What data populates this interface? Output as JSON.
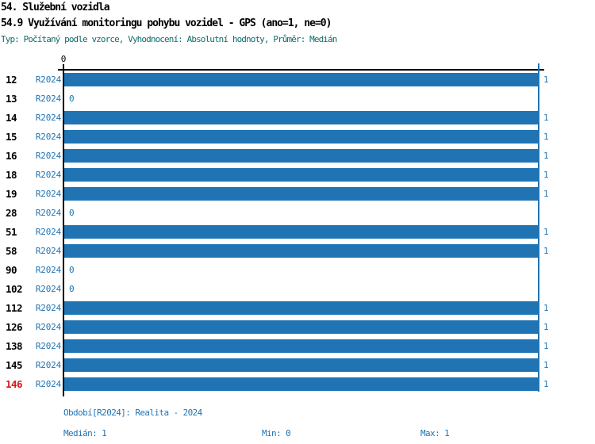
{
  "header": {
    "chapter_title": "54. Služební vozidla",
    "indicator_title": "54.9 Využívání monitoringu pohybu vozidel - GPS (ano=1, ne=0)",
    "meta": "Typ: Počítaný podle vzorce, Vyhodnocení: Absolutní hodnoty, Průměr: Medián"
  },
  "chart_data": {
    "type": "bar",
    "orientation": "horizontal",
    "title": "54.9 Využívání monitoringu pohybu vozidel - GPS (ano=1, ne=0)",
    "categories": [
      "12",
      "13",
      "14",
      "15",
      "16",
      "18",
      "19",
      "28",
      "51",
      "58",
      "90",
      "102",
      "112",
      "126",
      "138",
      "145",
      "146"
    ],
    "series": [
      {
        "name": "R2024",
        "values": [
          1,
          0,
          1,
          1,
          1,
          1,
          1,
          0,
          1,
          1,
          0,
          0,
          1,
          1,
          1,
          1,
          1
        ]
      }
    ],
    "xlim": [
      0,
      1
    ],
    "x_tick_labels": [
      "0"
    ],
    "value_labels_shown": true,
    "max_reference_line": 1,
    "highlighted_category": "146",
    "legend_position": "none",
    "grid": "off"
  },
  "footer": {
    "period_label": "Období[R2024]: Realita - 2024",
    "median_label": "Medián: 1",
    "min_label": "Min: 0",
    "max_label": "Max: 1"
  },
  "colors": {
    "bar": "#2074B4",
    "series_text": "#2074B4",
    "value_text": "#2074B4",
    "footer_text": "#2074B4",
    "max_line": "#2074B4",
    "meta_text": "#0F6B6B",
    "highlight_category": "#DC1414",
    "axis": "#000000"
  }
}
